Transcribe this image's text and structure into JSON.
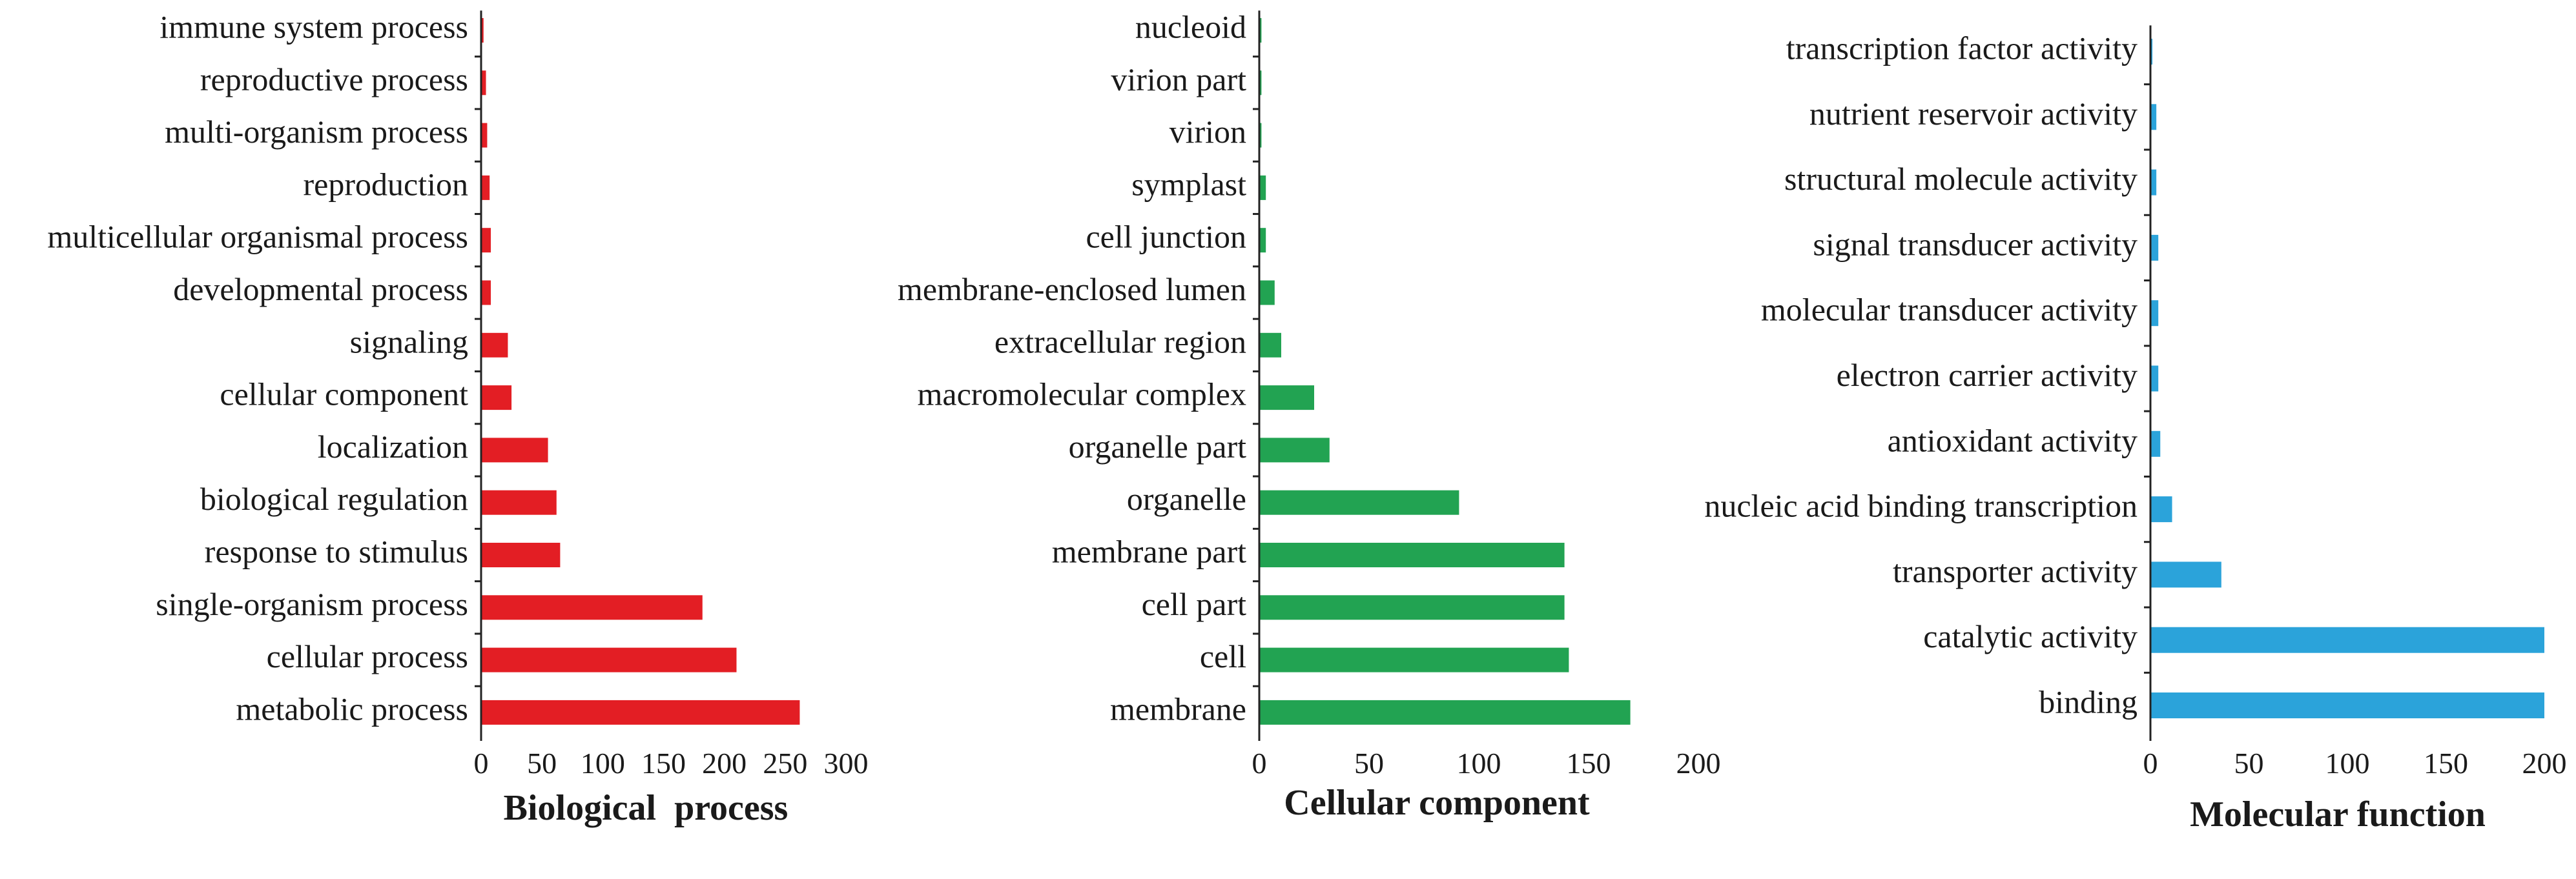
{
  "chart_data": [
    {
      "type": "bar",
      "orientation": "horizontal",
      "title": "Biological  process",
      "color": "#E31E24",
      "xlim": [
        0,
        300
      ],
      "xticks": [
        "0",
        "50",
        "100",
        "150",
        "200",
        "250",
        "300"
      ],
      "categories": [
        "immune system process",
        "reproductive process",
        "multi-organism process",
        "reproduction",
        "multicellular organismal process",
        "developmental process",
        "signaling",
        "cellular component",
        "localization",
        "biological regulation",
        "response to stimulus",
        "single-organism process",
        "cellular process",
        "metabolic process"
      ],
      "values": [
        2,
        4,
        5,
        7,
        8,
        8,
        22,
        25,
        55,
        62,
        65,
        182,
        210,
        262
      ]
    },
    {
      "type": "bar",
      "orientation": "horizontal",
      "title": "Cellular component",
      "color": "#22A352",
      "xlim": [
        0,
        200
      ],
      "xticks": [
        "0",
        "50",
        "100",
        "150",
        "200"
      ],
      "categories": [
        "nucleoid",
        "virion part",
        "virion",
        "symplast",
        "cell junction",
        "membrane-enclosed lumen",
        "extracellular region",
        "macromolecular complex",
        "organelle part",
        "organelle",
        "membrane part",
        "cell part",
        "cell",
        "membrane"
      ],
      "values": [
        1,
        1,
        1,
        3,
        3,
        7,
        10,
        25,
        32,
        91,
        139,
        139,
        141,
        169
      ]
    },
    {
      "type": "bar",
      "orientation": "horizontal",
      "title": "Molecular function",
      "color": "#2BA3DA",
      "xlim": [
        0,
        200
      ],
      "xticks": [
        "0",
        "50",
        "100",
        "150",
        "200"
      ],
      "categories": [
        "transcription factor activity",
        "nutrient reservoir activity",
        "structural molecule activity",
        "signal transducer activity",
        "molecular transducer activity",
        "electron carrier activity",
        "antioxidant activity",
        "nucleic acid binding transcription",
        "transporter activity",
        "catalytic activity",
        "binding"
      ],
      "values": [
        1,
        3,
        3,
        4,
        4,
        4,
        5,
        11,
        36,
        200,
        200
      ]
    }
  ]
}
